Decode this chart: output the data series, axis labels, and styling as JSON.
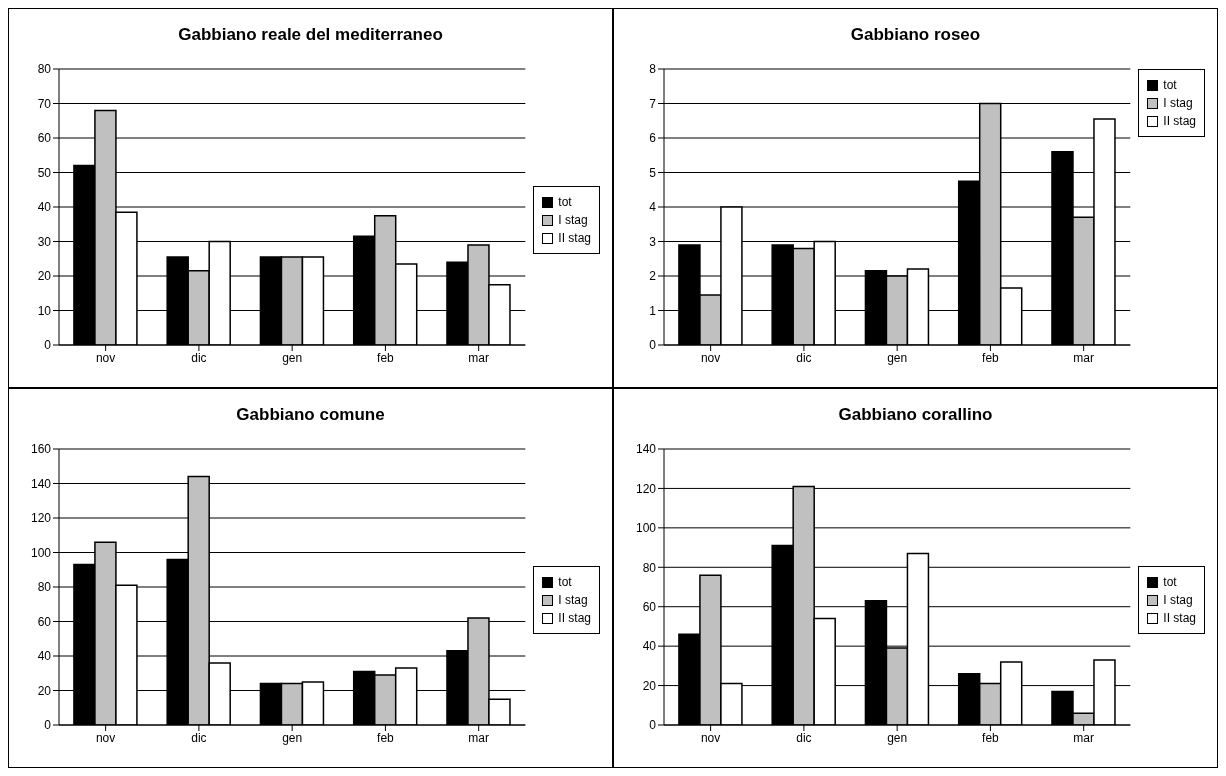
{
  "chart_data": [
    {
      "type": "bar",
      "title": "Gabbiano reale del mediterraneo",
      "categories": [
        "nov",
        "dic",
        "gen",
        "feb",
        "mar"
      ],
      "series": [
        {
          "name": "tot",
          "color": "#000000",
          "values": [
            52,
            25.5,
            25.5,
            31.5,
            24
          ]
        },
        {
          "name": "I stag",
          "color": "#c0c0c0",
          "values": [
            68,
            21.5,
            25.5,
            37.5,
            29
          ]
        },
        {
          "name": "II stag",
          "color": "#ffffff",
          "values": [
            38.5,
            30,
            25.5,
            23.5,
            17.5
          ]
        }
      ],
      "ylim": [
        0,
        80
      ],
      "yticks": [
        0,
        10,
        20,
        30,
        40,
        50,
        60,
        70,
        80
      ],
      "grid": "y",
      "legend": "right"
    },
    {
      "type": "bar",
      "title": "Gabbiano roseo",
      "categories": [
        "nov",
        "dic",
        "gen",
        "feb",
        "mar"
      ],
      "series": [
        {
          "name": "tot",
          "color": "#000000",
          "values": [
            2.9,
            2.9,
            2.15,
            4.75,
            5.6
          ]
        },
        {
          "name": "I stag",
          "color": "#c0c0c0",
          "values": [
            1.45,
            2.8,
            2,
            7,
            3.7
          ]
        },
        {
          "name": "II stag",
          "color": "#ffffff",
          "values": [
            4,
            3,
            2.2,
            1.65,
            6.55
          ]
        }
      ],
      "ylim": [
        0,
        8
      ],
      "yticks": [
        0,
        1,
        2,
        3,
        4,
        5,
        6,
        7,
        8
      ],
      "grid": "y",
      "legend": "top right"
    },
    {
      "type": "bar",
      "title": "Gabbiano comune",
      "categories": [
        "nov",
        "dic",
        "gen",
        "feb",
        "mar"
      ],
      "series": [
        {
          "name": "tot",
          "color": "#000000",
          "values": [
            93,
            96,
            24,
            31,
            43
          ]
        },
        {
          "name": "I stag",
          "color": "#c0c0c0",
          "values": [
            106,
            144,
            24,
            29,
            62
          ]
        },
        {
          "name": "II stag",
          "color": "#ffffff",
          "values": [
            81,
            36,
            25,
            33,
            15
          ]
        }
      ],
      "ylim": [
        0,
        160
      ],
      "yticks": [
        0,
        20,
        40,
        60,
        80,
        100,
        120,
        140,
        160
      ],
      "grid": "y",
      "legend": "right"
    },
    {
      "type": "bar",
      "title": "Gabbiano corallino",
      "categories": [
        "nov",
        "dic",
        "gen",
        "feb",
        "mar"
      ],
      "series": [
        {
          "name": "tot",
          "color": "#000000",
          "values": [
            46,
            91,
            63,
            26,
            17
          ]
        },
        {
          "name": "I stag",
          "color": "#c0c0c0",
          "values": [
            76,
            121,
            39,
            21,
            6
          ]
        },
        {
          "name": "II stag",
          "color": "#ffffff",
          "values": [
            21,
            54,
            87,
            32,
            33
          ]
        }
      ],
      "ylim": [
        0,
        140
      ],
      "yticks": [
        0,
        20,
        40,
        60,
        80,
        100,
        120,
        140
      ],
      "grid": "y",
      "legend": "right"
    }
  ]
}
